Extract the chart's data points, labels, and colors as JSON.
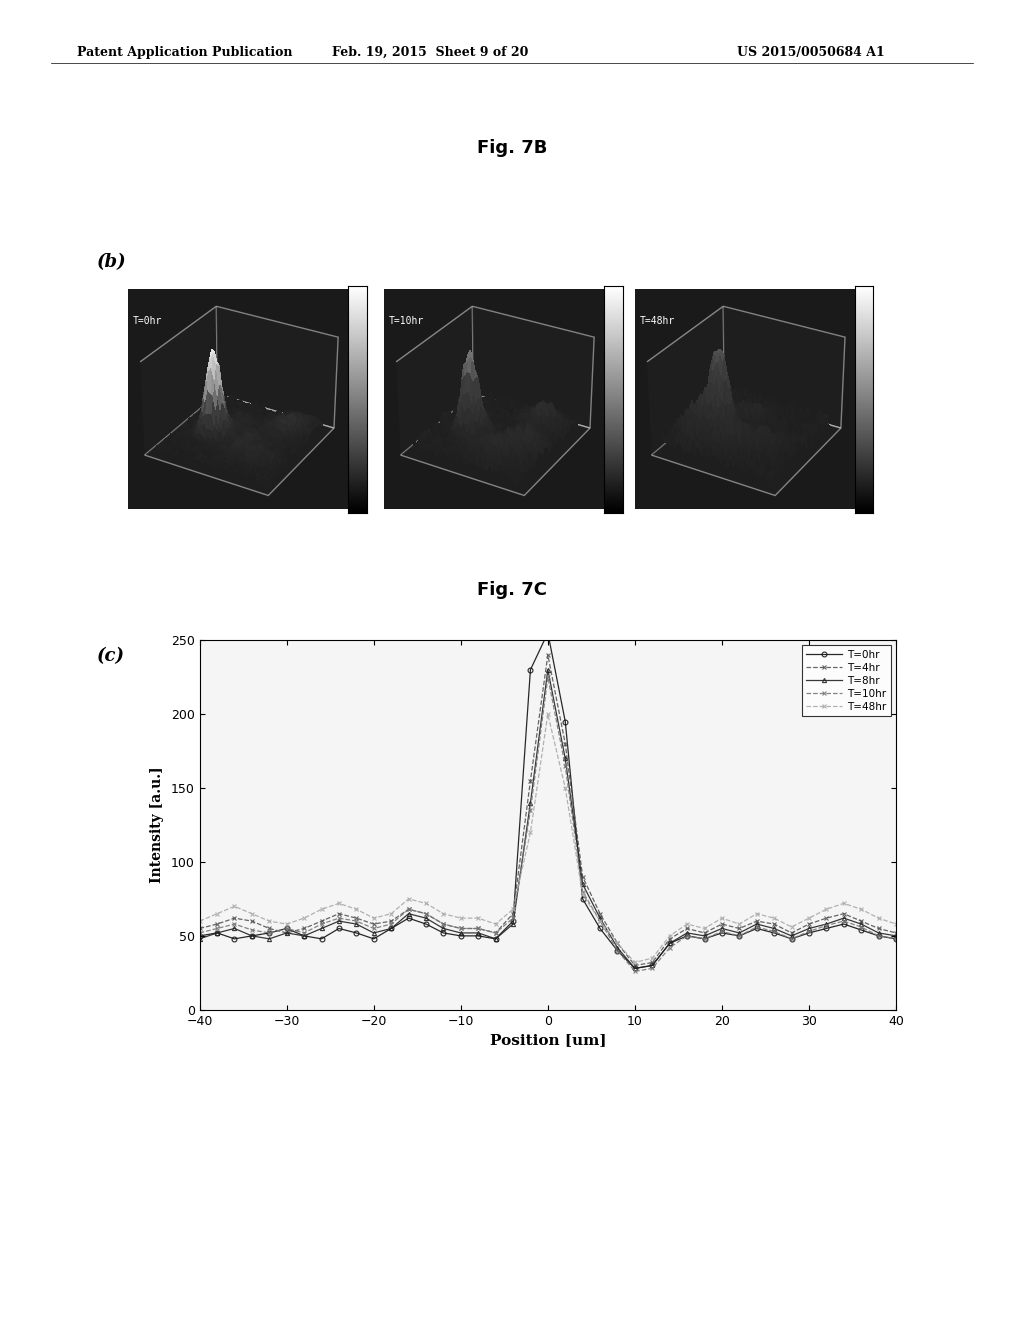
{
  "background_color": "#ffffff",
  "header_left": "Patent Application Publication",
  "header_mid": "Feb. 19, 2015  Sheet 9 of 20",
  "header_right": "US 2015/0050684 A1",
  "fig7b_title": "Fig. 7B",
  "fig7c_title": "Fig. 7C",
  "label_b": "(b)",
  "label_c": "(c)",
  "plot_titles_3d": [
    "T=0hr",
    "T=10hr",
    "T=48hr"
  ],
  "legend_labels": [
    "T=0hr",
    "T=4hr",
    "T=8hr",
    "T=10hr",
    "T=48hr"
  ],
  "xlabel": "Position [um]",
  "ylabel": "Intensity [a.u.]",
  "xlim": [
    -40,
    40
  ],
  "ylim": [
    0,
    250
  ],
  "xticks": [
    -40,
    -30,
    -20,
    -10,
    0,
    10,
    20,
    30,
    40
  ],
  "yticks": [
    0,
    50,
    100,
    150,
    200,
    250
  ],
  "x_data": [
    -40,
    -38,
    -36,
    -34,
    -32,
    -30,
    -28,
    -26,
    -24,
    -22,
    -20,
    -18,
    -16,
    -14,
    -12,
    -10,
    -8,
    -6,
    -4,
    -2,
    0,
    2,
    4,
    6,
    8,
    10,
    12,
    14,
    16,
    18,
    20,
    22,
    24,
    26,
    28,
    30,
    32,
    34,
    36,
    38,
    40
  ],
  "y_T0": [
    50,
    52,
    48,
    50,
    52,
    55,
    50,
    48,
    55,
    52,
    48,
    55,
    62,
    58,
    52,
    50,
    50,
    48,
    60,
    230,
    255,
    195,
    75,
    55,
    40,
    28,
    30,
    45,
    50,
    48,
    52,
    50,
    55,
    52,
    48,
    52,
    55,
    58,
    54,
    50,
    48
  ],
  "y_T4": [
    55,
    58,
    62,
    60,
    55,
    52,
    55,
    60,
    65,
    62,
    58,
    60,
    68,
    65,
    58,
    55,
    55,
    52,
    65,
    155,
    240,
    180,
    90,
    65,
    45,
    30,
    32,
    48,
    55,
    52,
    58,
    55,
    60,
    58,
    52,
    58,
    62,
    65,
    60,
    55,
    52
  ],
  "y_T8": [
    48,
    52,
    55,
    50,
    48,
    52,
    50,
    55,
    60,
    58,
    52,
    55,
    65,
    62,
    55,
    52,
    52,
    48,
    58,
    140,
    230,
    170,
    85,
    62,
    42,
    28,
    30,
    45,
    52,
    50,
    55,
    52,
    58,
    55,
    50,
    55,
    58,
    62,
    58,
    52,
    50
  ],
  "y_T10": [
    52,
    55,
    58,
    54,
    52,
    55,
    52,
    58,
    62,
    60,
    55,
    58,
    68,
    65,
    58,
    55,
    55,
    52,
    62,
    135,
    225,
    165,
    80,
    60,
    40,
    26,
    28,
    42,
    50,
    48,
    53,
    50,
    56,
    53,
    48,
    53,
    57,
    60,
    56,
    50,
    48
  ],
  "y_T48": [
    60,
    65,
    70,
    65,
    60,
    58,
    62,
    68,
    72,
    68,
    62,
    65,
    75,
    72,
    65,
    62,
    62,
    58,
    68,
    120,
    200,
    150,
    78,
    60,
    45,
    32,
    35,
    50,
    58,
    55,
    62,
    58,
    65,
    62,
    56,
    62,
    68,
    72,
    68,
    62,
    58
  ]
}
